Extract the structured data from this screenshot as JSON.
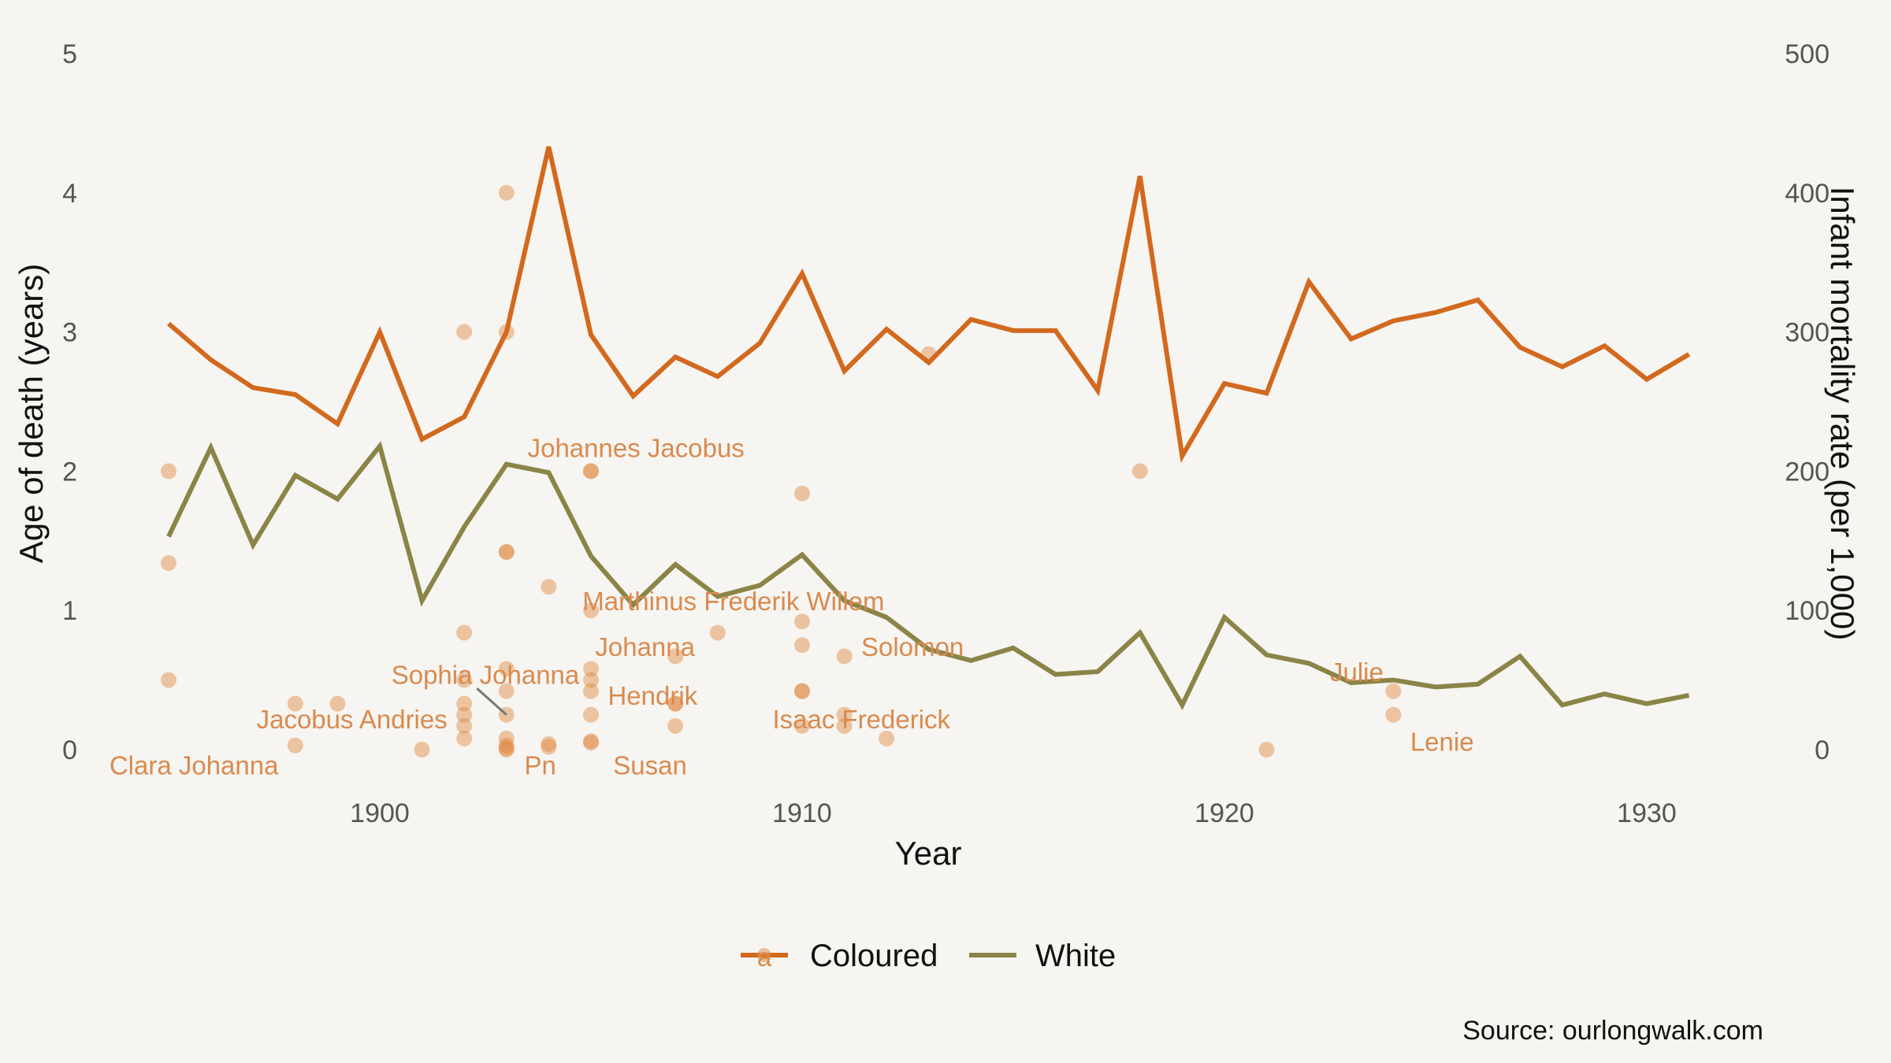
{
  "chart_data": {
    "type": "line",
    "xlabel": "Year",
    "ylabel": "Age of death (years)",
    "y2label": "Infant mortality rate (per 1,000)",
    "source": "Source: ourlongwalk.com",
    "xlim": [
      1893.5,
      1932.5
    ],
    "ylim": [
      0,
      5
    ],
    "y2lim": [
      0,
      500
    ],
    "x_ticks": [
      1900,
      1910,
      1920,
      1930
    ],
    "y_ticks": [
      0,
      1,
      2,
      3,
      4,
      5
    ],
    "y2_ticks": [
      0,
      100,
      200,
      300,
      400,
      500
    ],
    "colors": {
      "Coloured": "#d2691e",
      "White": "#8b8447",
      "points": "#e0883f",
      "label": "#d98a4f"
    },
    "legend": [
      {
        "name": "Coloured",
        "color": "#d2691e",
        "glyph": "a"
      },
      {
        "name": "White",
        "color": "#8b8447"
      }
    ],
    "series": [
      {
        "name": "Coloured",
        "axis": "right",
        "x": [
          1895,
          1896,
          1897,
          1898,
          1899,
          1900,
          1901,
          1902,
          1903,
          1904,
          1905,
          1906,
          1907,
          1908,
          1909,
          1910,
          1911,
          1912,
          1913,
          1914,
          1915,
          1916,
          1917,
          1918,
          1919,
          1920,
          1921,
          1922,
          1923,
          1924,
          1925,
          1926,
          1927,
          1928,
          1929,
          1930,
          1931
        ],
        "values": [
          306,
          280,
          260,
          255,
          234,
          300,
          223,
          239,
          300,
          433,
          298,
          254,
          282,
          268,
          292,
          342,
          272,
          302,
          278,
          309,
          301,
          301,
          258,
          412,
          211,
          263,
          256,
          336,
          295,
          308,
          314,
          323,
          289,
          275,
          290,
          266,
          284
        ]
      },
      {
        "name": "White",
        "axis": "right",
        "x": [
          1895,
          1896,
          1897,
          1898,
          1899,
          1900,
          1901,
          1902,
          1903,
          1904,
          1905,
          1906,
          1907,
          1908,
          1909,
          1910,
          1911,
          1912,
          1913,
          1914,
          1915,
          1916,
          1917,
          1918,
          1919,
          1920,
          1921,
          1922,
          1923,
          1924,
          1925,
          1926,
          1927,
          1928,
          1929,
          1930,
          1931
        ],
        "values": [
          153,
          217,
          147,
          197,
          180,
          218,
          107,
          160,
          205,
          199,
          139,
          104,
          133,
          110,
          118,
          140,
          107,
          95,
          72,
          64,
          73,
          54,
          56,
          84,
          32,
          95,
          68,
          62,
          48,
          50,
          45,
          47,
          67,
          32,
          40,
          33,
          39
        ]
      }
    ],
    "points": [
      {
        "x": 1895,
        "y": 2.0
      },
      {
        "x": 1895,
        "y": 1.34
      },
      {
        "x": 1895,
        "y": 0.5
      },
      {
        "x": 1898,
        "y": 0.33
      },
      {
        "x": 1898,
        "y": 0.03
      },
      {
        "x": 1899,
        "y": 0.33
      },
      {
        "x": 1901,
        "y": 0.0
      },
      {
        "x": 1902,
        "y": 3.0
      },
      {
        "x": 1902,
        "y": 0.84
      },
      {
        "x": 1902,
        "y": 0.5
      },
      {
        "x": 1902,
        "y": 0.33
      },
      {
        "x": 1902,
        "y": 0.25
      },
      {
        "x": 1902,
        "y": 0.17
      },
      {
        "x": 1902,
        "y": 0.08
      },
      {
        "x": 1903,
        "y": 4.0
      },
      {
        "x": 1903,
        "y": 3.0
      },
      {
        "x": 1903,
        "y": 1.42
      },
      {
        "x": 1903,
        "y": 1.42
      },
      {
        "x": 1903,
        "y": 0.58
      },
      {
        "x": 1903,
        "y": 0.42
      },
      {
        "x": 1903,
        "y": 0.25
      },
      {
        "x": 1903,
        "y": 0.08
      },
      {
        "x": 1903,
        "y": 0.03
      },
      {
        "x": 1903,
        "y": 0.01
      },
      {
        "x": 1903,
        "y": 0.0
      },
      {
        "x": 1904,
        "y": 1.17
      },
      {
        "x": 1904,
        "y": 0.04
      },
      {
        "x": 1904,
        "y": 0.02
      },
      {
        "x": 1905,
        "y": 2.0
      },
      {
        "x": 1905,
        "y": 2.0
      },
      {
        "x": 1905,
        "y": 1.0
      },
      {
        "x": 1905,
        "y": 0.58
      },
      {
        "x": 1905,
        "y": 0.5
      },
      {
        "x": 1905,
        "y": 0.42
      },
      {
        "x": 1905,
        "y": 0.25
      },
      {
        "x": 1905,
        "y": 0.06
      },
      {
        "x": 1905,
        "y": 0.05
      },
      {
        "x": 1907,
        "y": 0.67
      },
      {
        "x": 1907,
        "y": 0.33
      },
      {
        "x": 1907,
        "y": 0.33
      },
      {
        "x": 1907,
        "y": 0.17
      },
      {
        "x": 1908,
        "y": 0.84
      },
      {
        "x": 1910,
        "y": 1.84
      },
      {
        "x": 1910,
        "y": 0.92
      },
      {
        "x": 1910,
        "y": 0.75
      },
      {
        "x": 1910,
        "y": 0.42
      },
      {
        "x": 1910,
        "y": 0.42
      },
      {
        "x": 1910,
        "y": 0.17
      },
      {
        "x": 1911,
        "y": 0.67
      },
      {
        "x": 1911,
        "y": 0.25
      },
      {
        "x": 1911,
        "y": 0.17
      },
      {
        "x": 1912,
        "y": 0.08
      },
      {
        "x": 1913,
        "y": 2.84
      },
      {
        "x": 1918,
        "y": 2.0
      },
      {
        "x": 1921,
        "y": 0.0
      },
      {
        "x": 1924,
        "y": 0.42
      },
      {
        "x": 1924,
        "y": 0.25
      }
    ],
    "annotations": [
      {
        "text": "Johannes Jacobus",
        "x": 1903.5,
        "y": 2.17,
        "anchor": "start"
      },
      {
        "text": "Marthinus Frederik Willem",
        "x": 1904.8,
        "y": 1.07,
        "anchor": "start"
      },
      {
        "text": "Johanna",
        "x": 1905.1,
        "y": 0.74,
        "anchor": "start"
      },
      {
        "text": "Solomon",
        "x": 1911.4,
        "y": 0.74,
        "anchor": "start"
      },
      {
        "text": "Sophia Johanna",
        "x": 1902.5,
        "y": 0.54,
        "anchor": "middle"
      },
      {
        "text": "Hendrik",
        "x": 1905.4,
        "y": 0.39,
        "anchor": "start"
      },
      {
        "text": "Jacobus Andries",
        "x": 1901.6,
        "y": 0.22,
        "anchor": "end"
      },
      {
        "text": "Isaac Frederick",
        "x": 1909.3,
        "y": 0.22,
        "anchor": "start"
      },
      {
        "text": "Julie",
        "x": 1922.5,
        "y": 0.56,
        "anchor": "start"
      },
      {
        "text": "Lenie",
        "x": 1924.4,
        "y": 0.06,
        "anchor": "start"
      },
      {
        "text": "Clara Johanna",
        "x": 1895.6,
        "y": -0.11,
        "anchor": "middle"
      },
      {
        "text": "Pn",
        "x": 1903.8,
        "y": -0.11,
        "anchor": "middle"
      },
      {
        "text": "Susan",
        "x": 1906.4,
        "y": -0.11,
        "anchor": "middle"
      }
    ]
  }
}
